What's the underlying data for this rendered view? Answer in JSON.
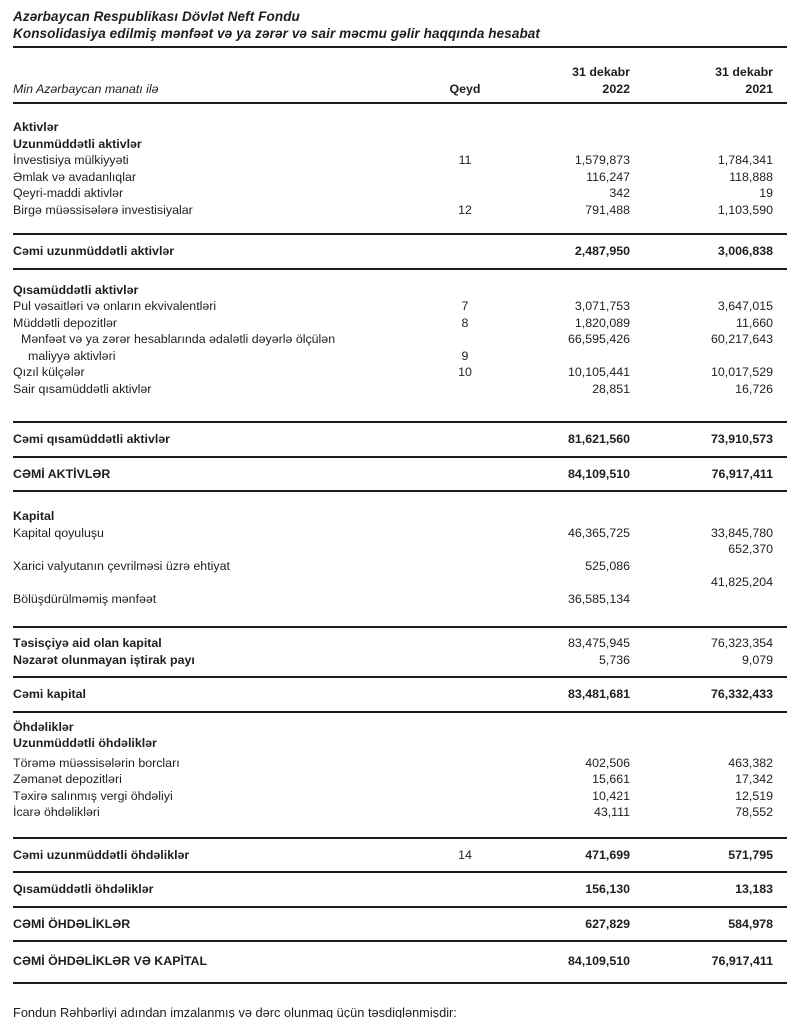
{
  "document": {
    "title_line1": "Azərbaycan Respublikası Dövlət Neft Fondu",
    "title_line2": "Konsolidasiya edilmiş mənfəət və ya zərər və sair məcmu gəlir haqqında hesabat",
    "footer": "Fondun Rəhbərliyi adından imzalanmış və dərc olunmaq üçün təsdiqlənmişdir:"
  },
  "colors": {
    "text": "#1e1e1e",
    "rule": "#1c1c1c",
    "background": "#ffffff"
  },
  "table": {
    "columns": {
      "label": "Min Azərbaycan manatı ilə",
      "note": "Qeyd",
      "period_2022": {
        "line1": "31 dekabr",
        "line2": "2022"
      },
      "period_2021": {
        "line1": "31 dekabr",
        "line2": "2021"
      }
    },
    "rows": [
      {
        "type": "gap",
        "h": 15
      },
      {
        "type": "section",
        "label": "Aktivlər"
      },
      {
        "type": "section",
        "label": "Uzunmüddətli aktivlər"
      },
      {
        "type": "item",
        "label": "İnvestisiya mülkiyyəti",
        "qeyd": "11",
        "v2022": "1,579,873",
        "v2021": "1,784,341"
      },
      {
        "type": "item",
        "label": "Əmlak və avadanlıqlar",
        "qeyd": "",
        "v2022": "116,247",
        "v2021": "118,888"
      },
      {
        "type": "item",
        "label": "Qeyri-maddi aktivlər",
        "qeyd": "",
        "v2022": "342",
        "v2021": "19"
      },
      {
        "type": "item",
        "label": "Birgə müəssisələrə investisiyalar",
        "qeyd": "12",
        "v2022": "791,488",
        "v2021": "1,103,590"
      },
      {
        "type": "gap",
        "h": 15
      },
      {
        "type": "rule"
      },
      {
        "type": "total",
        "label": "Cəmi uzunmüddətli aktivlər",
        "qeyd": "",
        "v2022": "2,487,950",
        "v2021": "3,006,838"
      },
      {
        "type": "rule"
      },
      {
        "type": "gap",
        "h": 12
      },
      {
        "type": "section",
        "label": "Qısamüddətli aktivlər"
      },
      {
        "type": "item",
        "label": "Pul vəsaitləri və onların ekvivalentləri",
        "qeyd": "7",
        "v2022": "3,071,753",
        "v2021": "3,647,015"
      },
      {
        "type": "item",
        "label": "Müddətli depozitlər",
        "qeyd": "8",
        "v2022": "1,820,089",
        "v2021": "11,660"
      },
      {
        "type": "item",
        "label": "Mənfəət və ya zərər hesablarında ədalətli dəyərlə ölçülən",
        "indent": 1,
        "qeyd": "",
        "v2022": "66,595,426",
        "v2021": "60,217,643"
      },
      {
        "type": "item",
        "label": "maliyyə aktivləri",
        "indent": 2,
        "qeyd": "9",
        "v2022": "",
        "v2021": ""
      },
      {
        "type": "item",
        "label": "Qızıl külçələr",
        "qeyd": "10",
        "v2022": "10,105,441",
        "v2021": "10,017,529"
      },
      {
        "type": "item",
        "label": "Sair qısamüddətli aktivlər",
        "qeyd": "",
        "v2022": "28,851",
        "v2021": "16,726"
      },
      {
        "type": "gap",
        "h": 24
      },
      {
        "type": "rule"
      },
      {
        "type": "total",
        "label": "Cəmi qısamüddətli aktivlər",
        "qeyd": "",
        "v2022": "81,621,560",
        "v2021": "73,910,573"
      },
      {
        "type": "rule"
      },
      {
        "type": "total",
        "label": "CƏMİ AKTİVLƏR",
        "qeyd": "",
        "v2022": "84,109,510",
        "v2021": "76,917,411"
      },
      {
        "type": "rule"
      },
      {
        "type": "gap",
        "h": 16
      },
      {
        "type": "section",
        "label": "Kapital"
      },
      {
        "type": "item",
        "label": "Kapital qoyuluşu",
        "qeyd": "",
        "v2022": "46,365,725",
        "v2021": "33,845,780"
      },
      {
        "type": "item",
        "label": "",
        "qeyd": "",
        "v2022": "",
        "v2021": "652,370"
      },
      {
        "type": "item",
        "label": "Xarici valyutanın çevrilməsi üzrə ehtiyat",
        "qeyd": "",
        "v2022": "525,086",
        "v2021": ""
      },
      {
        "type": "item",
        "label": "",
        "qeyd": "",
        "v2022": "",
        "v2021": "41,825,204"
      },
      {
        "type": "item",
        "label": "Bölüşdürülməmiş mənfəət",
        "qeyd": "",
        "v2022": "36,585,134",
        "v2021": ""
      },
      {
        "type": "gap",
        "h": 19
      },
      {
        "type": "rule"
      },
      {
        "type": "gap",
        "h": 7
      },
      {
        "type": "bolditem",
        "label": "Təsisçiyə aid olan kapital",
        "qeyd": "",
        "v2022": "83,475,945",
        "v2021": "76,323,354"
      },
      {
        "type": "bolditem",
        "label": "Nəzarət olunmayan iştirak payı",
        "qeyd": "",
        "v2022": "5,736",
        "v2021": "9,079"
      },
      {
        "type": "gap",
        "h": 8
      },
      {
        "type": "rule"
      },
      {
        "type": "total",
        "label": "Cəmi kapital",
        "qeyd": "",
        "v2022": "83,481,681",
        "v2021": "76,332,433"
      },
      {
        "type": "rule"
      },
      {
        "type": "gap",
        "h": 6
      },
      {
        "type": "section",
        "label": "Öhdəliklər"
      },
      {
        "type": "section",
        "label": "Uzunmüddətli öhdəliklər"
      },
      {
        "type": "gap",
        "h": 3
      },
      {
        "type": "item",
        "label": "Törəmə müəssisələrin borcları",
        "qeyd": "",
        "v2022": "402,506",
        "v2021": "463,382"
      },
      {
        "type": "item",
        "label": "Zəmanət depozitləri",
        "qeyd": "",
        "v2022": "15,661",
        "v2021": "17,342"
      },
      {
        "type": "item",
        "label": "Təxirə salınmış vergi öhdəliyi",
        "qeyd": "",
        "v2022": "10,421",
        "v2021": "12,519"
      },
      {
        "type": "item",
        "label": "İcarə öhdəlikləri",
        "qeyd": "",
        "v2022": "43,111",
        "v2021": "78,552"
      },
      {
        "type": "gap",
        "h": 16
      },
      {
        "type": "rule"
      },
      {
        "type": "total",
        "label": "Cəmi uzunmüddətli öhdəliklər",
        "qeyd": "14",
        "v2022": "471,699",
        "v2021": "571,795"
      },
      {
        "type": "rule"
      },
      {
        "type": "total",
        "label": "Qısamüddətli öhdəliklər",
        "qeyd": "",
        "v2022": "156,130",
        "v2021": "13,183"
      },
      {
        "type": "rule"
      },
      {
        "type": "total",
        "label": "CƏMİ ÖHDƏLİKLƏR",
        "qeyd": "",
        "v2022": "627,829",
        "v2021": "584,978"
      },
      {
        "type": "rule"
      },
      {
        "type": "total",
        "tall": true,
        "label": "CƏMİ ÖHDƏLİKLƏR VƏ KAPİTAL",
        "qeyd": "",
        "v2022": "84,109,510",
        "v2021": "76,917,411"
      },
      {
        "type": "rule"
      },
      {
        "type": "gap",
        "h": 20
      }
    ]
  }
}
